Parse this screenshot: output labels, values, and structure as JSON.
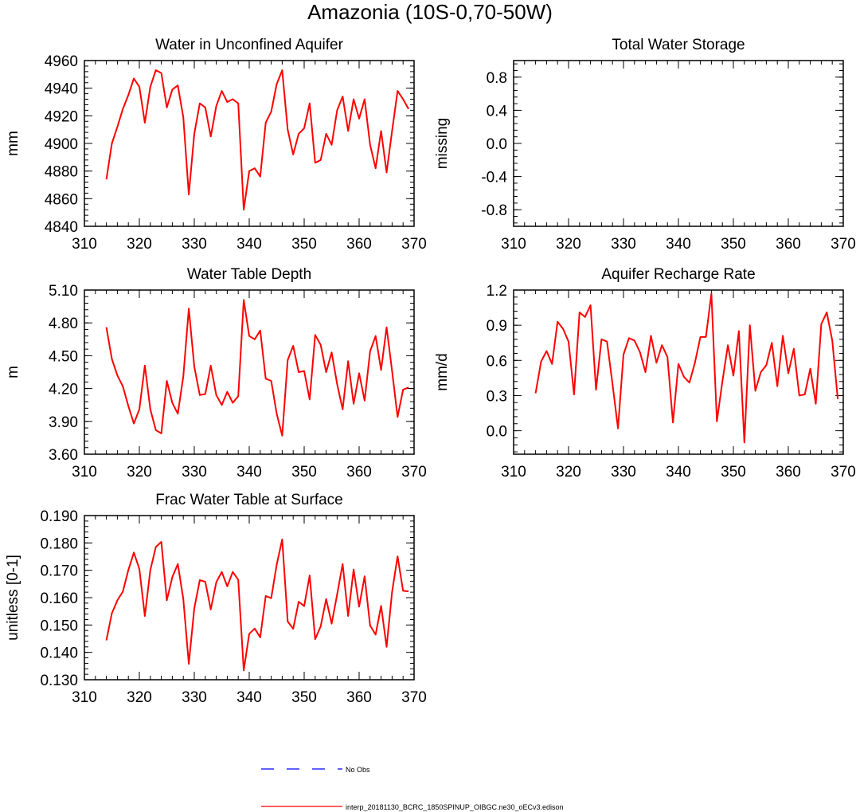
{
  "figure": {
    "title": "Amazonia (10S-0,70-50W)",
    "legend": [
      {
        "label": "No Obs",
        "color": "#0000ff",
        "style": "dashed"
      },
      {
        "label": "interp_20181130_BCRC_1850SPINUP_OIBGC.ne30_oECv3.edison",
        "color": "#ff0000",
        "style": "solid"
      }
    ]
  },
  "chart_data": [
    {
      "type": "line",
      "title": "Water in Unconfined Aquifer",
      "xlabel": "",
      "ylabel": "mm",
      "xlim": [
        310,
        370
      ],
      "ylim": [
        4840,
        4960
      ],
      "xticks": [
        310,
        320,
        330,
        340,
        350,
        360,
        370
      ],
      "yticks": [
        4840,
        4860,
        4880,
        4900,
        4920,
        4940,
        4960
      ],
      "ytick_labels": [
        "4840",
        "4860",
        "4880",
        "4900",
        "4920",
        "4940",
        "4960"
      ],
      "series": [
        {
          "name": "interp_20181130_BCRC_1850SPINUP_OIBGC.ne30_oECv3.edison",
          "color": "#ff0000",
          "x": [
            314,
            315,
            316,
            317,
            318,
            319,
            320,
            321,
            322,
            323,
            324,
            325,
            326,
            327,
            328,
            329,
            330,
            331,
            332,
            333,
            334,
            335,
            336,
            337,
            338,
            339,
            340,
            341,
            342,
            343,
            344,
            345,
            346,
            347,
            348,
            349,
            350,
            351,
            352,
            353,
            354,
            355,
            356,
            357,
            358,
            359,
            360,
            361,
            362,
            363,
            364,
            365,
            366,
            367,
            368,
            369
          ],
          "values": [
            4874,
            4900,
            4912,
            4925,
            4935,
            4947,
            4941,
            4915,
            4941,
            4953,
            4951,
            4926,
            4939,
            4942,
            4919,
            4863,
            4907,
            4929,
            4926,
            4905,
            4927,
            4938,
            4930,
            4932,
            4929,
            4852,
            4880,
            4882,
            4876,
            4915,
            4923,
            4943,
            4953,
            4910,
            4892,
            4907,
            4911,
            4929,
            4886,
            4888,
            4907,
            4899,
            4924,
            4934,
            4909,
            4932,
            4918,
            4932,
            4899,
            4882,
            4909,
            4879,
            4909,
            4938,
            4932,
            4925
          ]
        }
      ]
    },
    {
      "type": "line",
      "title": "Total Water Storage",
      "xlabel": "",
      "ylabel": "missing",
      "xlim": [
        310,
        370
      ],
      "ylim": [
        -1,
        1
      ],
      "xticks": [
        310,
        320,
        330,
        340,
        350,
        360,
        370
      ],
      "yticks": [
        -0.8,
        -0.4,
        0.0,
        0.4,
        0.8
      ],
      "ytick_labels": [
        "-0.8",
        "-0.4",
        "0.0",
        "0.4",
        "0.8"
      ],
      "series": []
    },
    {
      "type": "line",
      "title": "Water Table Depth",
      "xlabel": "",
      "ylabel": "m",
      "xlim": [
        310,
        370
      ],
      "ylim": [
        3.6,
        5.1
      ],
      "xticks": [
        310,
        320,
        330,
        340,
        350,
        360,
        370
      ],
      "yticks": [
        3.6,
        3.9,
        4.2,
        4.5,
        4.8,
        5.1
      ],
      "ytick_labels": [
        "3.60",
        "3.90",
        "4.20",
        "4.50",
        "4.80",
        "5.10"
      ],
      "series": [
        {
          "name": "interp_20181130_BCRC_1850SPINUP_OIBGC.ne30_oECv3.edison",
          "color": "#ff0000",
          "x": [
            314,
            315,
            316,
            317,
            318,
            319,
            320,
            321,
            322,
            323,
            324,
            325,
            326,
            327,
            328,
            329,
            330,
            331,
            332,
            333,
            334,
            335,
            336,
            337,
            338,
            339,
            340,
            341,
            342,
            343,
            344,
            345,
            346,
            347,
            348,
            349,
            350,
            351,
            352,
            353,
            354,
            355,
            356,
            357,
            358,
            359,
            360,
            361,
            362,
            363,
            364,
            365,
            366,
            367,
            368,
            369
          ],
          "values": [
            4.76,
            4.47,
            4.32,
            4.22,
            4.04,
            3.88,
            4.01,
            4.41,
            4.01,
            3.82,
            3.79,
            4.27,
            4.07,
            3.97,
            4.31,
            4.93,
            4.4,
            4.14,
            4.15,
            4.41,
            4.14,
            4.05,
            4.17,
            4.07,
            4.13,
            5.01,
            4.68,
            4.65,
            4.73,
            4.29,
            4.27,
            3.97,
            3.77,
            4.46,
            4.59,
            4.35,
            4.36,
            4.1,
            4.69,
            4.6,
            4.35,
            4.53,
            4.24,
            4.01,
            4.45,
            4.06,
            4.34,
            4.09,
            4.54,
            4.68,
            4.37,
            4.76,
            4.36,
            3.94,
            4.19,
            4.21
          ]
        }
      ]
    },
    {
      "type": "line",
      "title": "Aquifer Recharge Rate",
      "xlabel": "",
      "ylabel": "mm/d",
      "xlim": [
        310,
        370
      ],
      "ylim": [
        -0.2,
        1.2
      ],
      "xticks": [
        310,
        320,
        330,
        340,
        350,
        360,
        370
      ],
      "yticks": [
        0.0,
        0.3,
        0.6,
        0.9,
        1.2
      ],
      "ytick_labels": [
        "0.0",
        "0.3",
        "0.6",
        "0.9",
        "1.2"
      ],
      "series": [
        {
          "name": "interp_20181130_BCRC_1850SPINUP_OIBGC.ne30_oECv3.edison",
          "color": "#ff0000",
          "x": [
            314,
            315,
            316,
            317,
            318,
            319,
            320,
            321,
            322,
            323,
            324,
            325,
            326,
            327,
            328,
            329,
            330,
            331,
            332,
            333,
            334,
            335,
            336,
            337,
            338,
            339,
            340,
            341,
            342,
            343,
            344,
            345,
            346,
            347,
            348,
            349,
            350,
            351,
            352,
            353,
            354,
            355,
            356,
            357,
            358,
            359,
            360,
            361,
            362,
            363,
            364,
            365,
            366,
            367,
            368,
            369
          ],
          "values": [
            0.32,
            0.59,
            0.68,
            0.57,
            0.93,
            0.87,
            0.76,
            0.31,
            1.01,
            0.97,
            1.07,
            0.35,
            0.78,
            0.76,
            0.4,
            0.02,
            0.65,
            0.79,
            0.77,
            0.67,
            0.5,
            0.81,
            0.58,
            0.73,
            0.63,
            0.07,
            0.57,
            0.46,
            0.41,
            0.58,
            0.8,
            0.8,
            1.17,
            0.08,
            0.42,
            0.73,
            0.47,
            0.85,
            -0.1,
            0.9,
            0.34,
            0.5,
            0.56,
            0.75,
            0.38,
            0.81,
            0.49,
            0.7,
            0.3,
            0.31,
            0.53,
            0.23,
            0.91,
            1.01,
            0.77,
            0.27
          ]
        }
      ]
    },
    {
      "type": "line",
      "title": "Frac Water Table at Surface",
      "xlabel": "",
      "ylabel": "unitless [0-1]",
      "xlim": [
        310,
        370
      ],
      "ylim": [
        0.13,
        0.19
      ],
      "xticks": [
        310,
        320,
        330,
        340,
        350,
        360,
        370
      ],
      "yticks": [
        0.13,
        0.14,
        0.15,
        0.16,
        0.17,
        0.18,
        0.19
      ],
      "ytick_labels": [
        "0.130",
        "0.140",
        "0.150",
        "0.160",
        "0.170",
        "0.180",
        "0.190"
      ],
      "series": [
        {
          "name": "interp_20181130_BCRC_1850SPINUP_OIBGC.ne30_oECv3.edison",
          "color": "#ff0000",
          "x": [
            314,
            315,
            316,
            317,
            318,
            319,
            320,
            321,
            322,
            323,
            324,
            325,
            326,
            327,
            328,
            329,
            330,
            331,
            332,
            333,
            334,
            335,
            336,
            337,
            338,
            339,
            340,
            341,
            342,
            343,
            344,
            345,
            346,
            347,
            348,
            349,
            350,
            351,
            352,
            353,
            354,
            355,
            356,
            357,
            358,
            359,
            360,
            361,
            362,
            363,
            364,
            365,
            366,
            367,
            368,
            369
          ],
          "values": [
            0.1444,
            0.1543,
            0.159,
            0.1622,
            0.1701,
            0.1765,
            0.1705,
            0.1533,
            0.1701,
            0.1785,
            0.1804,
            0.159,
            0.1675,
            0.1723,
            0.1595,
            0.1358,
            0.1561,
            0.1664,
            0.1658,
            0.1557,
            0.1656,
            0.1694,
            0.1641,
            0.1694,
            0.1665,
            0.1334,
            0.1468,
            0.1487,
            0.1455,
            0.1606,
            0.1598,
            0.1721,
            0.1813,
            0.1513,
            0.1486,
            0.1585,
            0.1569,
            0.1681,
            0.1448,
            0.1495,
            0.1595,
            0.1505,
            0.1612,
            0.1723,
            0.1533,
            0.1703,
            0.1567,
            0.1678,
            0.1498,
            0.1465,
            0.157,
            0.142,
            0.1621,
            0.1751,
            0.1625,
            0.1623
          ]
        }
      ]
    }
  ]
}
